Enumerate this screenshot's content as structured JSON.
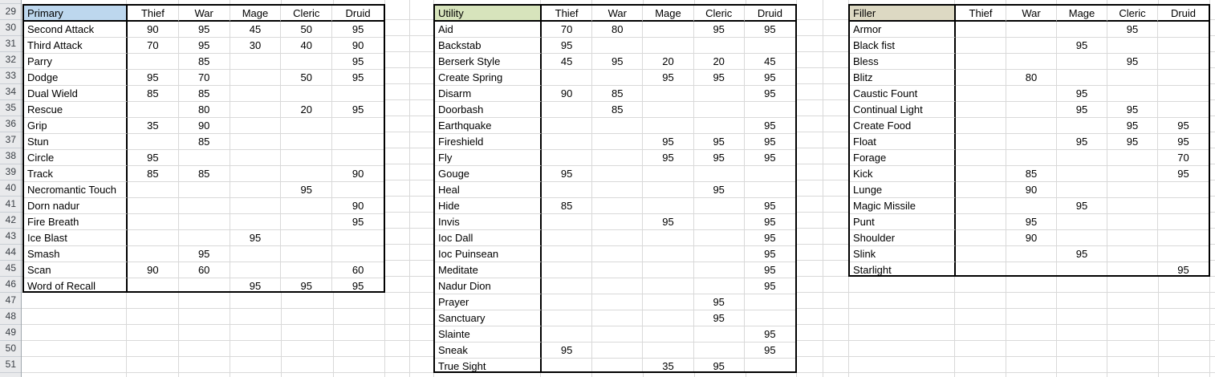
{
  "sheet": {
    "row_numbers": [
      "29",
      "30",
      "31",
      "32",
      "33",
      "34",
      "35",
      "36",
      "37",
      "38",
      "39",
      "40",
      "41",
      "42",
      "43",
      "44",
      "45",
      "46",
      "47",
      "48",
      "49",
      "50",
      "51"
    ],
    "class_columns": [
      "Thief",
      "War",
      "Mage",
      "Cleric",
      "Druid"
    ]
  },
  "colors": {
    "gridline": "#d9d9d9",
    "table_border": "#000000",
    "primary_header_fill": "#bdd7ee",
    "utility_header_fill": "#d7e4bc",
    "filler_header_fill": "#ddd9c3",
    "gutter_fill": "#e9eaec"
  },
  "tables": [
    {
      "title": "Primary",
      "fill": "#bdd7ee",
      "rows": [
        [
          "Second Attack",
          "90",
          "95",
          "45",
          "50",
          "95"
        ],
        [
          "Third Attack",
          "70",
          "95",
          "30",
          "40",
          "90"
        ],
        [
          "Parry",
          "",
          "85",
          "",
          "",
          "95"
        ],
        [
          "Dodge",
          "95",
          "70",
          "",
          "50",
          "95"
        ],
        [
          "Dual Wield",
          "85",
          "85",
          "",
          "",
          ""
        ],
        [
          "Rescue",
          "",
          "80",
          "",
          "20",
          "95"
        ],
        [
          "Grip",
          "35",
          "90",
          "",
          "",
          ""
        ],
        [
          "Stun",
          "",
          "85",
          "",
          "",
          ""
        ],
        [
          "Circle",
          "95",
          "",
          "",
          "",
          ""
        ],
        [
          "Track",
          "85",
          "85",
          "",
          "",
          "90"
        ],
        [
          "Necromantic Touch",
          "",
          "",
          "",
          "95",
          ""
        ],
        [
          "Dorn nadur",
          "",
          "",
          "",
          "",
          "90"
        ],
        [
          "Fire Breath",
          "",
          "",
          "",
          "",
          "95"
        ],
        [
          "Ice Blast",
          "",
          "",
          "95",
          "",
          ""
        ],
        [
          "Smash",
          "",
          "95",
          "",
          "",
          ""
        ],
        [
          "Scan",
          "90",
          "60",
          "",
          "",
          "60"
        ],
        [
          "Word of Recall",
          "",
          "",
          "95",
          "95",
          "95"
        ]
      ]
    },
    {
      "title": "Utility",
      "fill": "#d7e4bc",
      "rows": [
        [
          "Aid",
          "70",
          "80",
          "",
          "95",
          "95"
        ],
        [
          "Backstab",
          "95",
          "",
          "",
          "",
          ""
        ],
        [
          "Berserk Style",
          "45",
          "95",
          "20",
          "20",
          "45"
        ],
        [
          "Create Spring",
          "",
          "",
          "95",
          "95",
          "95"
        ],
        [
          "Disarm",
          "90",
          "85",
          "",
          "",
          "95"
        ],
        [
          "Doorbash",
          "",
          "85",
          "",
          "",
          ""
        ],
        [
          "Earthquake",
          "",
          "",
          "",
          "",
          "95"
        ],
        [
          "Fireshield",
          "",
          "",
          "95",
          "95",
          "95"
        ],
        [
          "Fly",
          "",
          "",
          "95",
          "95",
          "95"
        ],
        [
          "Gouge",
          "95",
          "",
          "",
          "",
          ""
        ],
        [
          "Heal",
          "",
          "",
          "",
          "95",
          ""
        ],
        [
          "Hide",
          "85",
          "",
          "",
          "",
          "95"
        ],
        [
          "Invis",
          "",
          "",
          "95",
          "",
          "95"
        ],
        [
          "Ioc Dall",
          "",
          "",
          "",
          "",
          "95"
        ],
        [
          "Ioc Puinsean",
          "",
          "",
          "",
          "",
          "95"
        ],
        [
          "Meditate",
          "",
          "",
          "",
          "",
          "95"
        ],
        [
          "Nadur Dion",
          "",
          "",
          "",
          "",
          "95"
        ],
        [
          "Prayer",
          "",
          "",
          "",
          "95",
          ""
        ],
        [
          "Sanctuary",
          "",
          "",
          "",
          "95",
          ""
        ],
        [
          "Slainte",
          "",
          "",
          "",
          "",
          "95"
        ],
        [
          "Sneak",
          "95",
          "",
          "",
          "",
          "95"
        ],
        [
          "True Sight",
          "",
          "",
          "35",
          "95",
          ""
        ]
      ]
    },
    {
      "title": "Filler",
      "fill": "#ddd9c3",
      "rows": [
        [
          "Armor",
          "",
          "",
          "",
          "95",
          ""
        ],
        [
          "Black fist",
          "",
          "",
          "95",
          "",
          ""
        ],
        [
          "Bless",
          "",
          "",
          "",
          "95",
          ""
        ],
        [
          "Blitz",
          "",
          "80",
          "",
          "",
          ""
        ],
        [
          "Caustic Fount",
          "",
          "",
          "95",
          "",
          ""
        ],
        [
          "Continual Light",
          "",
          "",
          "95",
          "95",
          ""
        ],
        [
          "Create Food",
          "",
          "",
          "",
          "95",
          "95"
        ],
        [
          "Float",
          "",
          "",
          "95",
          "95",
          "95"
        ],
        [
          "Forage",
          "",
          "",
          "",
          "",
          "70"
        ],
        [
          "Kick",
          "",
          "85",
          "",
          "",
          "95"
        ],
        [
          "Lunge",
          "",
          "90",
          "",
          "",
          ""
        ],
        [
          "Magic Missile",
          "",
          "",
          "95",
          "",
          ""
        ],
        [
          "Punt",
          "",
          "95",
          "",
          "",
          ""
        ],
        [
          "Shoulder",
          "",
          "90",
          "",
          "",
          ""
        ],
        [
          "Slink",
          "",
          "",
          "95",
          "",
          ""
        ],
        [
          "Starlight",
          "",
          "",
          "",
          "",
          "95"
        ]
      ]
    }
  ]
}
